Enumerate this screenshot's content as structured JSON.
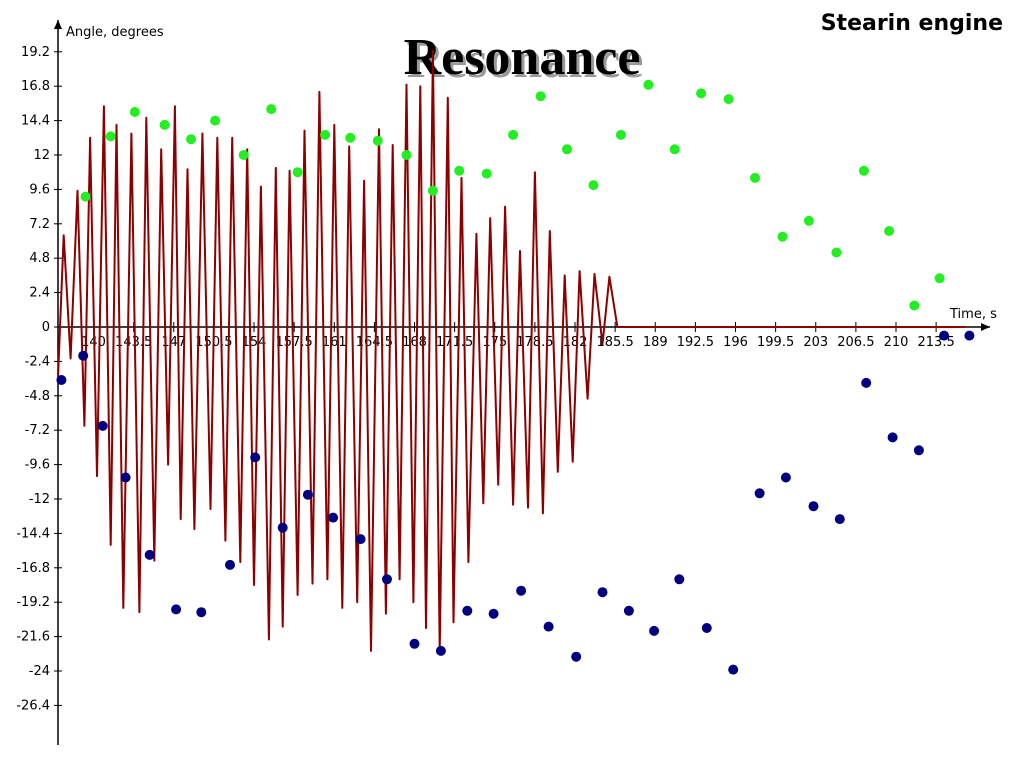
{
  "header": {
    "title": "Resonance",
    "subtitle_right": "Stearin engine"
  },
  "chart_data": {
    "type": "line",
    "xlabel": "Time, s",
    "ylabel": "Angle, degrees",
    "xlim": [
      136.9,
      218.2
    ],
    "ylim": [
      -27.5,
      20.5
    ],
    "x_ticks": [
      "140",
      "143.5",
      "147",
      "150.5",
      "154",
      "157.5",
      "161",
      "164.5",
      "168",
      "171.5",
      "175",
      "178.5",
      "182",
      "185.5",
      "189",
      "192.5",
      "196",
      "199.5",
      "203",
      "206.5",
      "210",
      "213.5"
    ],
    "x_tick_values": [
      140,
      143.5,
      147,
      150.5,
      154,
      157.5,
      161,
      164.5,
      168,
      171.5,
      175,
      178.5,
      182,
      185.5,
      189,
      192.5,
      196,
      199.5,
      203,
      206.5,
      210,
      213.5
    ],
    "y_ticks": [
      "19.2",
      "16.8",
      "14.4",
      "12",
      "9.6",
      "7.2",
      "4.8",
      "2.4",
      "0",
      "-2.4",
      "-4.8",
      "-7.2",
      "-9.6",
      "-12",
      "-14.4",
      "-16.8",
      "-19.2",
      "-21.6",
      "-24",
      "-26.4"
    ],
    "y_tick_values": [
      19.2,
      16.8,
      14.4,
      12,
      9.6,
      7.2,
      4.8,
      2.4,
      0,
      -2.4,
      -4.8,
      -7.2,
      -9.6,
      -12,
      -14.4,
      -16.8,
      -19.2,
      -21.6,
      -24,
      -26.4
    ],
    "grid": false,
    "colors": {
      "line": "#8b0000",
      "maxima": "#22ee22",
      "minima": "#000080",
      "axis": "#000000"
    },
    "series": [
      {
        "role": "angle-trace",
        "x": [
          136.9,
          137.4,
          138.0,
          138.6,
          139.2,
          139.7,
          140.3,
          140.9,
          141.5,
          142.0,
          142.6,
          143.3,
          144.0,
          144.6,
          145.3,
          145.9,
          146.5,
          147.1,
          147.6,
          148.2,
          148.8,
          149.5,
          150.2,
          150.8,
          151.5,
          152.1,
          152.8,
          153.4,
          154.0,
          154.6,
          155.3,
          155.9,
          156.5,
          157.1,
          157.8,
          158.4,
          159.1,
          159.7,
          160.4,
          161.0,
          161.7,
          162.3,
          163.0,
          163.6,
          164.2,
          164.9,
          165.5,
          166.1,
          166.7,
          167.3,
          167.9,
          168.5,
          169.0,
          169.6,
          170.2,
          170.9,
          171.4,
          172.1,
          172.7,
          173.4,
          174.0,
          174.6,
          175.3,
          175.9,
          176.6,
          177.2,
          177.9,
          178.5,
          179.2,
          179.8,
          180.5,
          181.1,
          181.8,
          182.4,
          183.1,
          183.7,
          184.4,
          185.0,
          185.7,
          186.3,
          187.0,
          187.6,
          188.3,
          188.9,
          189.5,
          190.2,
          190.8,
          191.5,
          192.1,
          192.8,
          193.4,
          194.1,
          194.7,
          195.4,
          196.0,
          196.7,
          197.3,
          198.0,
          198.6,
          199.3,
          199.9,
          200.6,
          201.2,
          201.9,
          202.5,
          203.2,
          203.8,
          204.5,
          205.1,
          205.8,
          206.4,
          207.1,
          207.7,
          208.4,
          209.0,
          209.7,
          210.3,
          211.0,
          211.6,
          212.3,
          212.9,
          213.6,
          214.2,
          214.8,
          215.3,
          216.0
        ],
        "y": [
          -3.5,
          6.4,
          -2.2,
          9.5,
          -6.9,
          13.2,
          -10.4,
          15.4,
          -15.2,
          14.1,
          -19.6,
          13.5,
          -19.9,
          14.6,
          -16.3,
          12.4,
          -9.6,
          15.4,
          -13.4,
          11.0,
          -14.1,
          13.5,
          -12.7,
          13.2,
          -14.9,
          13.2,
          -16.4,
          12.4,
          -18.0,
          9.8,
          -21.8,
          11.1,
          -20.9,
          10.9,
          -18.7,
          13.7,
          -17.9,
          16.4,
          -17.6,
          14.1,
          -19.6,
          12.6,
          -19.2,
          10.2,
          -22.6,
          13.8,
          -20.0,
          12.7,
          -17.6,
          16.9,
          -19.2,
          16.8,
          -21.0,
          19.3,
          -22.6,
          16.0,
          -20.6,
          10.4,
          -16.4,
          6.5,
          -12.3,
          7.6,
          -11.0,
          8.4,
          -12.4,
          5.3,
          -12.6,
          10.8,
          -13.0,
          6.7,
          -10.1,
          3.6,
          -9.4,
          3.9,
          -5.0,
          3.7,
          -1.2,
          3.5,
          0,
          0,
          0,
          0,
          0,
          0,
          0,
          0,
          0,
          0,
          0,
          0,
          0,
          0,
          0,
          0,
          0,
          0,
          0,
          0,
          0,
          0,
          0,
          0,
          0,
          0,
          0,
          0,
          0,
          0,
          0,
          0,
          0,
          0,
          0,
          0,
          0,
          0,
          0,
          0,
          0,
          0,
          0,
          0,
          0,
          0,
          0,
          0
        ]
      },
      {
        "role": "maxima-markers",
        "x": [
          139.3,
          141.5,
          143.6,
          146.2,
          148.5,
          150.6,
          153.1,
          155.5,
          157.8,
          160.2,
          162.4,
          164.8,
          167.3,
          169.6,
          171.9,
          174.3,
          176.6,
          179.0,
          181.3,
          183.6,
          186.0,
          188.4,
          190.7,
          193.0,
          195.4,
          197.7,
          200.1,
          202.4,
          204.8,
          207.2,
          209.4,
          211.6,
          213.8
        ],
        "y": [
          9.1,
          13.3,
          15.0,
          14.1,
          13.1,
          14.4,
          12.0,
          15.2,
          10.8,
          13.4,
          13.2,
          13.0,
          12.0,
          9.5,
          10.9,
          10.7,
          13.4,
          16.1,
          12.4,
          9.9,
          13.4,
          16.9,
          12.4,
          16.3,
          15.9,
          10.4,
          6.3,
          7.4,
          5.2,
          10.9,
          6.7,
          1.5,
          3.4
        ]
      },
      {
        "role": "minima-markers",
        "x": [
          137.2,
          139.1,
          140.8,
          142.8,
          144.9,
          147.2,
          149.4,
          151.9,
          154.1,
          156.5,
          158.7,
          160.9,
          163.3,
          165.6,
          168.0,
          170.3,
          172.6,
          174.9,
          177.3,
          179.7,
          182.1,
          184.4,
          186.7,
          188.9,
          191.1,
          193.5,
          195.8,
          198.1,
          200.4,
          202.8,
          205.1,
          207.4,
          209.7,
          212.0,
          214.2,
          216.4
        ],
        "y": [
          -3.7,
          -2.0,
          -6.9,
          -10.5,
          -15.9,
          -19.7,
          -19.9,
          -16.6,
          -9.1,
          -14.0,
          -11.7,
          -13.3,
          -14.8,
          -17.6,
          -22.1,
          -22.6,
          -19.8,
          -20.0,
          -18.4,
          -20.9,
          -23.0,
          -18.5,
          -19.8,
          -21.2,
          -17.6,
          -21.0,
          -23.9,
          -11.6,
          -10.5,
          -12.5,
          -13.4,
          -3.9,
          -7.7,
          -8.6,
          -0.6,
          -0.6
        ]
      }
    ]
  }
}
